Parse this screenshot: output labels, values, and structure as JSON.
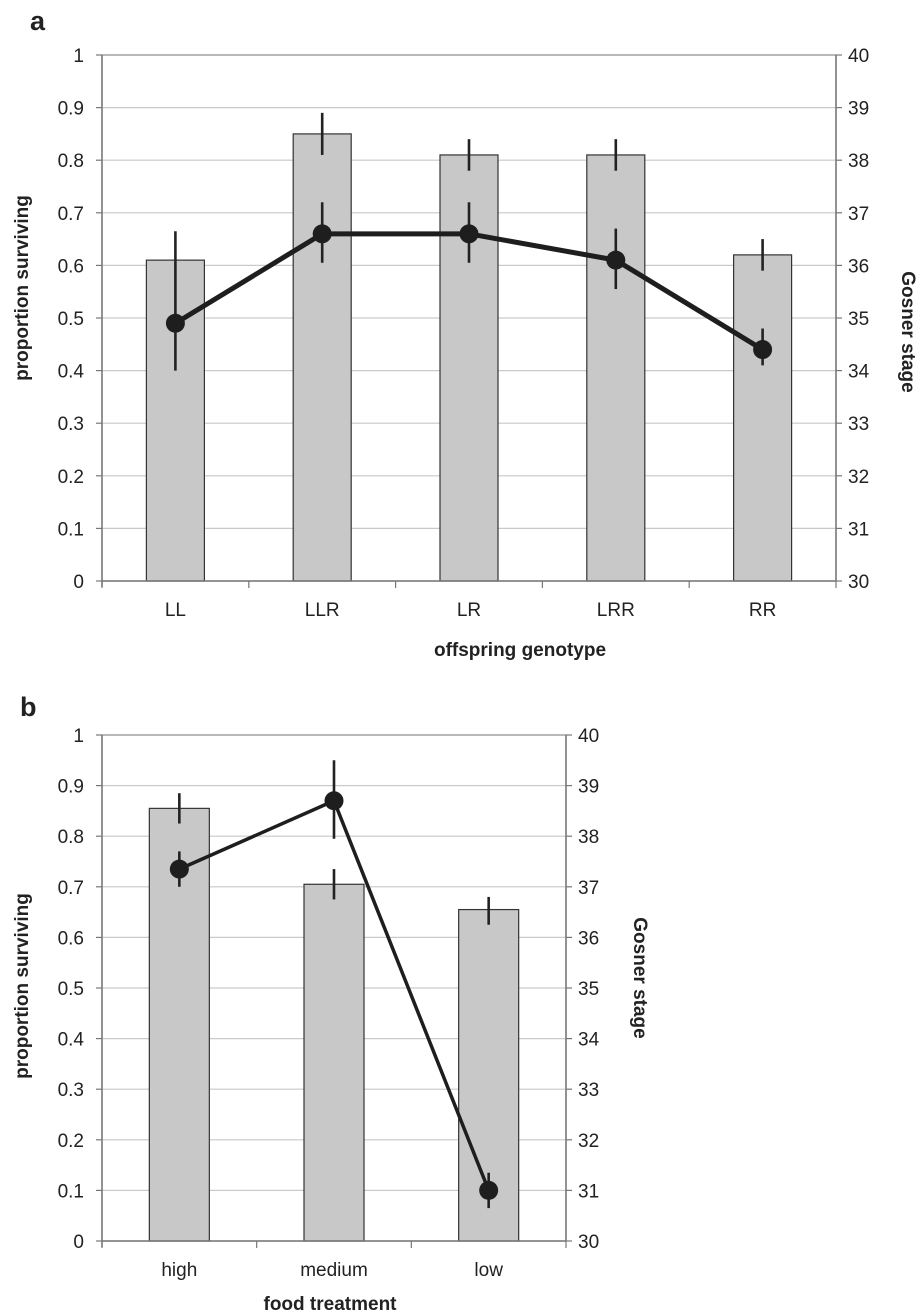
{
  "chart_data": [
    {
      "panel": "a",
      "type": "bar",
      "categories": [
        "LL",
        "LLR",
        "LR",
        "LRR",
        "RR"
      ],
      "xlabel": "offspring  genotype",
      "ylabel": "proportion surviving",
      "y2label": "Gosner  stage",
      "ylim": [
        0,
        1
      ],
      "y2lim": [
        30,
        40
      ],
      "yticks": [
        "0",
        "0.1",
        "0.2",
        "0.3",
        "0.4",
        "0.5",
        "0.6",
        "0.7",
        "0.8",
        "0.9",
        "1"
      ],
      "y2ticks": [
        "30",
        "31",
        "32",
        "33",
        "34",
        "35",
        "36",
        "37",
        "38",
        "39",
        "40"
      ],
      "grid": true,
      "bars": {
        "axis": "left",
        "values": [
          0.61,
          0.85,
          0.81,
          0.81,
          0.62
        ],
        "err_low": [
          0.61,
          0.81,
          0.78,
          0.78,
          0.59
        ],
        "err_high": [
          0.61,
          0.89,
          0.84,
          0.84,
          0.65
        ]
      },
      "line": {
        "axis": "right",
        "values": [
          34.9,
          36.6,
          36.6,
          36.1,
          34.4
        ],
        "err_low": [
          34.0,
          36.05,
          36.05,
          35.55,
          34.1
        ],
        "err_high": [
          36.65,
          37.2,
          37.2,
          36.7,
          34.8
        ]
      }
    },
    {
      "panel": "b",
      "type": "bar",
      "categories": [
        "high",
        "medium",
        "low"
      ],
      "xlabel": "food treatment",
      "ylabel": "proportion surviving",
      "y2label": "Gosner  stage",
      "ylim": [
        0,
        1
      ],
      "y2lim": [
        30,
        40
      ],
      "yticks": [
        "0",
        "0.1",
        "0.2",
        "0.3",
        "0.4",
        "0.5",
        "0.6",
        "0.7",
        "0.8",
        "0.9",
        "1"
      ],
      "y2ticks": [
        "30",
        "31",
        "32",
        "33",
        "34",
        "35",
        "36",
        "37",
        "38",
        "39",
        "40"
      ],
      "grid": true,
      "bars": {
        "axis": "left",
        "values": [
          0.855,
          0.705,
          0.655
        ],
        "err_low": [
          0.825,
          0.675,
          0.625
        ],
        "err_high": [
          0.885,
          0.735,
          0.68
        ]
      },
      "line": {
        "axis": "right",
        "values": [
          37.35,
          38.7,
          31.0
        ],
        "err_low": [
          37.0,
          37.95,
          30.65
        ],
        "err_high": [
          37.7,
          39.5,
          31.35
        ]
      }
    }
  ]
}
